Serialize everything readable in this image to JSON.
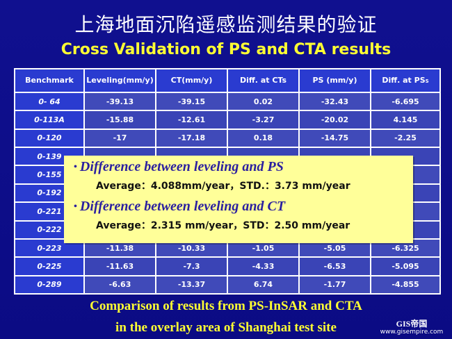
{
  "title_cn": "上海地面沉陷遥感监测结果的验证",
  "title_en": "Cross Validation of PS and CTA results",
  "table": {
    "headers": {
      "benchmark": "Benchmark",
      "leveling": "Leveling(mm/y)",
      "ct": "CT(mm/y)",
      "diff_ct": "Diff. at CTs",
      "ps": "PS (mm/y)",
      "diff_ps_main": "Diff. at PS",
      "diff_ps_sub": "S"
    },
    "rows": [
      [
        "0- 64",
        "-39.13",
        "-39.15",
        "0.02",
        "-32.43",
        "-6.695"
      ],
      [
        "0-113A",
        "-15.88",
        "-12.61",
        "-3.27",
        "-20.02",
        "4.145"
      ],
      [
        "0-120",
        "-17",
        "-17.18",
        "0.18",
        "-14.75",
        "-2.25"
      ],
      [
        "0-139",
        "",
        "",
        "",
        "",
        ""
      ],
      [
        "0-155",
        "",
        "",
        "",
        "",
        ""
      ],
      [
        "0-192",
        "",
        "",
        "",
        "",
        ""
      ],
      [
        "0-221",
        "",
        "",
        "",
        "",
        ""
      ],
      [
        "0-222",
        "",
        "",
        "",
        "",
        ""
      ],
      [
        "0-223",
        "-11.38",
        "-10.33",
        "-1.05",
        "-5.05",
        "-6.325"
      ],
      [
        "0-225",
        "-11.63",
        "-7.3",
        "-4.33",
        "-6.53",
        "-5.095"
      ],
      [
        "0-289",
        "-6.63",
        "-13.37",
        "6.74",
        "-1.77",
        "-4.855"
      ]
    ]
  },
  "overlay": {
    "heading1": "Difference between leveling and PS",
    "stat1": "Average：4.088mm/year，STD.：3.73 mm/year",
    "heading2": "Difference between leveling and CT",
    "stat2": "Average：2.315 mm/year，STD：2.50 mm/year"
  },
  "caption": {
    "line1": "Comparison of results from PS-InSAR and CTA",
    "line2": "in the overlay area of Shanghai test site"
  },
  "logo": {
    "mark": "GIS帝国",
    "url": "www.gisempire.com"
  }
}
